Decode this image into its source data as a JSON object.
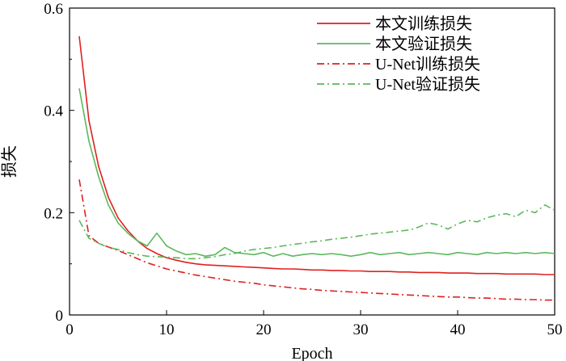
{
  "chart_data": {
    "type": "line",
    "xlabel": "Epoch",
    "ylabel": "损失",
    "xlim": [
      0,
      50
    ],
    "ylim": [
      0,
      0.6
    ],
    "xticks": [
      "0",
      "10",
      "20",
      "30",
      "40",
      "50"
    ],
    "yticks": [
      "0",
      "0.2",
      "0.4",
      "0.6"
    ],
    "grid": false,
    "legend_position": "top-right",
    "series": [
      {
        "name": "本文训练损失",
        "color": "#e02020",
        "dash": "solid",
        "x": [
          1,
          2,
          3,
          4,
          5,
          6,
          7,
          8,
          9,
          10,
          11,
          12,
          13,
          14,
          15,
          16,
          17,
          18,
          19,
          20,
          21,
          22,
          23,
          24,
          25,
          26,
          27,
          28,
          29,
          30,
          31,
          32,
          33,
          34,
          35,
          36,
          37,
          38,
          39,
          40,
          41,
          42,
          43,
          44,
          45,
          46,
          47,
          48,
          49,
          50
        ],
        "y": [
          0.545,
          0.38,
          0.29,
          0.23,
          0.19,
          0.165,
          0.145,
          0.13,
          0.12,
          0.112,
          0.107,
          0.103,
          0.1,
          0.098,
          0.097,
          0.096,
          0.095,
          0.094,
          0.093,
          0.092,
          0.091,
          0.09,
          0.09,
          0.089,
          0.088,
          0.088,
          0.087,
          0.087,
          0.086,
          0.086,
          0.085,
          0.085,
          0.085,
          0.084,
          0.084,
          0.083,
          0.083,
          0.083,
          0.082,
          0.082,
          0.082,
          0.081,
          0.081,
          0.081,
          0.08,
          0.08,
          0.08,
          0.08,
          0.079,
          0.079
        ]
      },
      {
        "name": "本文验证损失",
        "color": "#5cb85c",
        "dash": "solid",
        "x": [
          1,
          2,
          3,
          4,
          5,
          6,
          7,
          8,
          9,
          10,
          11,
          12,
          13,
          14,
          15,
          16,
          17,
          18,
          19,
          20,
          21,
          22,
          23,
          24,
          25,
          26,
          27,
          28,
          29,
          30,
          31,
          32,
          33,
          34,
          35,
          36,
          37,
          38,
          39,
          40,
          41,
          42,
          43,
          44,
          45,
          46,
          47,
          48,
          49,
          50
        ],
        "y": [
          0.443,
          0.34,
          0.27,
          0.215,
          0.18,
          0.16,
          0.145,
          0.135,
          0.16,
          0.135,
          0.125,
          0.118,
          0.12,
          0.115,
          0.118,
          0.132,
          0.122,
          0.12,
          0.118,
          0.122,
          0.115,
          0.12,
          0.115,
          0.118,
          0.12,
          0.118,
          0.12,
          0.118,
          0.115,
          0.118,
          0.122,
          0.118,
          0.12,
          0.122,
          0.118,
          0.12,
          0.122,
          0.12,
          0.118,
          0.122,
          0.12,
          0.118,
          0.122,
          0.12,
          0.122,
          0.12,
          0.122,
          0.12,
          0.122,
          0.12
        ]
      },
      {
        "name": "U-Net训练损失",
        "color": "#e02020",
        "dash": "dashdot",
        "x": [
          1,
          2,
          3,
          4,
          5,
          6,
          7,
          8,
          9,
          10,
          11,
          12,
          13,
          14,
          15,
          16,
          17,
          18,
          19,
          20,
          21,
          22,
          23,
          24,
          25,
          26,
          27,
          28,
          29,
          30,
          31,
          32,
          33,
          34,
          35,
          36,
          37,
          38,
          39,
          40,
          41,
          42,
          43,
          44,
          45,
          46,
          47,
          48,
          49,
          50
        ],
        "y": [
          0.265,
          0.155,
          0.14,
          0.133,
          0.126,
          0.118,
          0.11,
          0.102,
          0.096,
          0.09,
          0.086,
          0.082,
          0.078,
          0.075,
          0.072,
          0.069,
          0.066,
          0.064,
          0.062,
          0.059,
          0.057,
          0.055,
          0.053,
          0.051,
          0.05,
          0.048,
          0.047,
          0.046,
          0.045,
          0.044,
          0.043,
          0.042,
          0.041,
          0.04,
          0.039,
          0.038,
          0.037,
          0.036,
          0.035,
          0.035,
          0.034,
          0.033,
          0.033,
          0.032,
          0.031,
          0.031,
          0.03,
          0.03,
          0.029,
          0.029
        ]
      },
      {
        "name": "U-Net验证损失",
        "color": "#5cb85c",
        "dash": "dashdot",
        "x": [
          1,
          2,
          3,
          4,
          5,
          6,
          7,
          8,
          9,
          10,
          11,
          12,
          13,
          14,
          15,
          16,
          17,
          18,
          19,
          20,
          21,
          22,
          23,
          24,
          25,
          26,
          27,
          28,
          29,
          30,
          31,
          32,
          33,
          34,
          35,
          36,
          37,
          38,
          39,
          40,
          41,
          42,
          43,
          44,
          45,
          46,
          47,
          48,
          49,
          50
        ],
        "y": [
          0.185,
          0.15,
          0.14,
          0.132,
          0.128,
          0.122,
          0.118,
          0.115,
          0.114,
          0.113,
          0.112,
          0.11,
          0.11,
          0.112,
          0.114,
          0.118,
          0.12,
          0.125,
          0.128,
          0.13,
          0.132,
          0.135,
          0.138,
          0.14,
          0.143,
          0.145,
          0.148,
          0.15,
          0.152,
          0.155,
          0.158,
          0.16,
          0.162,
          0.164,
          0.166,
          0.172,
          0.18,
          0.176,
          0.168,
          0.178,
          0.185,
          0.182,
          0.19,
          0.195,
          0.198,
          0.192,
          0.205,
          0.2,
          0.215,
          0.205
        ]
      }
    ]
  }
}
